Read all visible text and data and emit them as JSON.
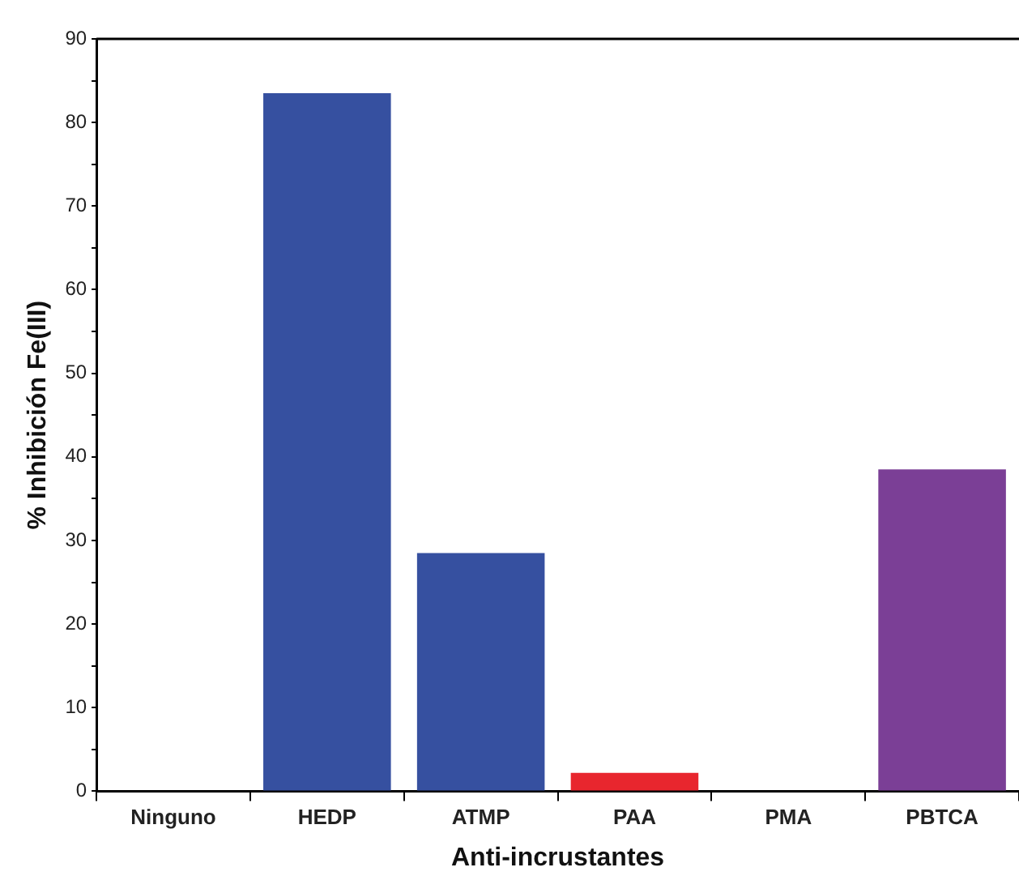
{
  "chart_data": {
    "type": "bar",
    "xlabel": "Anti-incrustantes",
    "ylabel": "% Inhibición Fe(III)",
    "categories": [
      "Ninguno",
      "HEDP",
      "ATMP",
      "PAA",
      "PMA",
      "PBTCA"
    ],
    "values": [
      0,
      83.5,
      28.5,
      2.2,
      0,
      38.5
    ],
    "colors": [
      "#3650a0",
      "#3650a0",
      "#3650a0",
      "#e8262e",
      "#3650a0",
      "#7b3f96"
    ],
    "ylim": [
      0,
      90
    ],
    "yticks": [
      0,
      {
        "value": 5,
        "label": null
      },
      10,
      {
        "value": 15,
        "label": null
      },
      20,
      {
        "value": 25,
        "label": null
      },
      30,
      {
        "value": 35,
        "label": null
      },
      40,
      {
        "value": 45,
        "label": null
      },
      50,
      {
        "value": 55,
        "label": null
      },
      60,
      {
        "value": 65,
        "label": null
      },
      70,
      {
        "value": 75,
        "label": null
      },
      80,
      {
        "value": 85,
        "label": null
      },
      90
    ],
    "grid": false,
    "legend": false
  }
}
